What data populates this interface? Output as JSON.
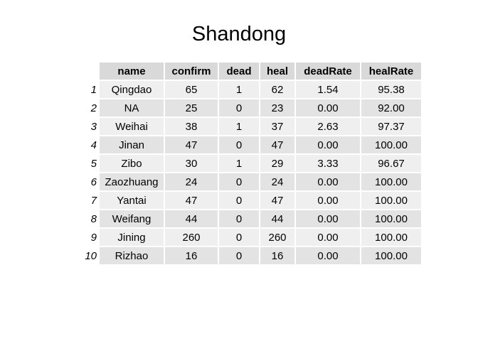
{
  "chart_data": {
    "type": "table",
    "title": "Shandong",
    "columns": [
      "name",
      "confirm",
      "dead",
      "heal",
      "deadRate",
      "healRate"
    ],
    "rows": [
      {
        "index": "1",
        "cells": [
          "Qingdao",
          "65",
          "1",
          "62",
          "1.54",
          "95.38"
        ]
      },
      {
        "index": "2",
        "cells": [
          "NA",
          "25",
          "0",
          "23",
          "0.00",
          "92.00"
        ]
      },
      {
        "index": "3",
        "cells": [
          "Weihai",
          "38",
          "1",
          "37",
          "2.63",
          "97.37"
        ]
      },
      {
        "index": "4",
        "cells": [
          "Jinan",
          "47",
          "0",
          "47",
          "0.00",
          "100.00"
        ]
      },
      {
        "index": "5",
        "cells": [
          "Zibo",
          "30",
          "1",
          "29",
          "3.33",
          "96.67"
        ]
      },
      {
        "index": "6",
        "cells": [
          "Zaozhuang",
          "24",
          "0",
          "24",
          "0.00",
          "100.00"
        ]
      },
      {
        "index": "7",
        "cells": [
          "Yantai",
          "47",
          "0",
          "47",
          "0.00",
          "100.00"
        ]
      },
      {
        "index": "8",
        "cells": [
          "Weifang",
          "44",
          "0",
          "44",
          "0.00",
          "100.00"
        ]
      },
      {
        "index": "9",
        "cells": [
          "Jining",
          "260",
          "0",
          "260",
          "0.00",
          "100.00"
        ]
      },
      {
        "index": "10",
        "cells": [
          "Rizhao",
          "16",
          "0",
          "16",
          "0.00",
          "100.00"
        ]
      }
    ]
  },
  "colors": {
    "header_bg": "#d9d9d9",
    "row_odd_bg": "#efefef",
    "row_even_bg": "#e3e3e3"
  }
}
